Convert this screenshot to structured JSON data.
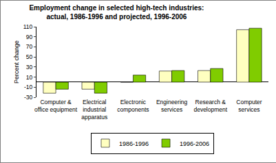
{
  "chart_data": {
    "type": "bar",
    "title": "Employment change in selected high-tech industries: actual, 1986-1996 and projected, 1996-2006",
    "y_label": "Percent change",
    "categories": [
      "Computer & office equipment",
      "Electrical industrial apparatus",
      "Electronic components",
      "Engineering services",
      "Research & development",
      "Computer services"
    ],
    "series": [
      {
        "name": "1986-1996",
        "color": "#ffffc0",
        "values": [
          -22,
          -14,
          0,
          22,
          23,
          104
        ]
      },
      {
        "name": "1996-2006",
        "color": "#80cc00",
        "values": [
          -14,
          -22,
          14,
          23,
          27,
          107
        ]
      }
    ],
    "ylim": [
      -30,
      110
    ],
    "yticks": [
      -30,
      -10,
      10,
      30,
      50,
      70,
      90,
      110
    ],
    "grid": false,
    "legend": "bottom"
  }
}
